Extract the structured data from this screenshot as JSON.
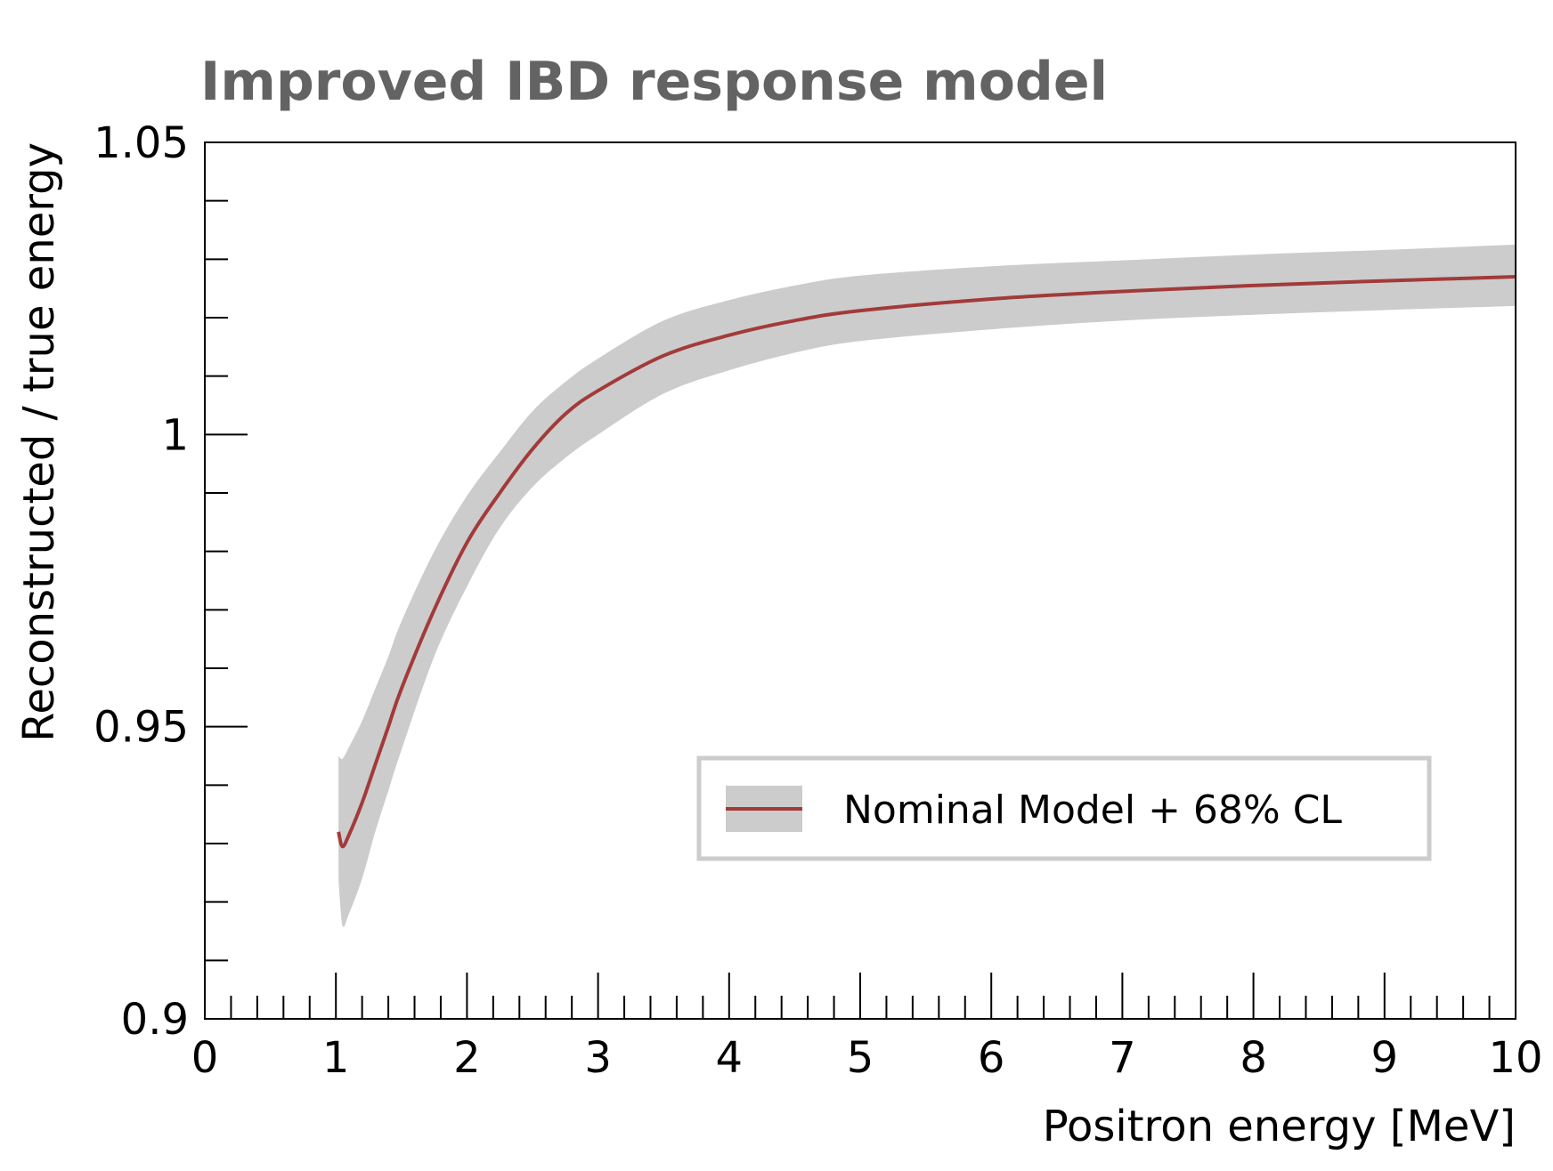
{
  "chart_data": {
    "type": "line",
    "title": "Improved IBD response model",
    "xlabel": "Positron energy [MeV]",
    "ylabel": "Reconstructed / true energy",
    "xlim": [
      0,
      10
    ],
    "ylim": [
      0.9,
      1.05
    ],
    "x_ticks": [
      0,
      1,
      2,
      3,
      4,
      5,
      6,
      7,
      8,
      9,
      10
    ],
    "x_tick_labels": [
      "0",
      "1",
      "2",
      "3",
      "4",
      "5",
      "6",
      "7",
      "8",
      "9",
      "10"
    ],
    "y_ticks": [
      0.9,
      0.95,
      1.0,
      1.05
    ],
    "y_tick_labels": [
      "0.9",
      "0.95",
      "1",
      "1.05"
    ],
    "grid": false,
    "legend": {
      "position": "bottom-right",
      "entries": [
        "Nominal Model + 68% CL"
      ]
    },
    "series": [
      {
        "name": "Nominal Model + 68% CL",
        "color": "#a33a3a",
        "band_color": "#cccccc",
        "x": [
          1.02,
          1.05,
          1.1,
          1.2,
          1.3,
          1.4,
          1.5,
          1.75,
          2.0,
          2.25,
          2.5,
          2.75,
          3.0,
          3.5,
          4.0,
          4.5,
          5.0,
          6.0,
          7.0,
          8.0,
          9.0,
          10.0
        ],
        "y": [
          0.932,
          0.9295,
          0.9315,
          0.937,
          0.9435,
          0.95,
          0.9565,
          0.97,
          0.9815,
          0.99,
          0.9975,
          1.0035,
          1.0075,
          1.0135,
          1.017,
          1.0195,
          1.0212,
          1.0232,
          1.0245,
          1.0255,
          1.0263,
          1.027
        ],
        "y_low": [
          0.924,
          0.916,
          0.918,
          0.924,
          0.932,
          0.939,
          0.946,
          0.962,
          0.974,
          0.984,
          0.991,
          0.996,
          1.0,
          1.007,
          1.011,
          1.014,
          1.016,
          1.018,
          1.0195,
          1.0205,
          1.0213,
          1.022
        ],
        "y_high": [
          0.945,
          0.9445,
          0.9465,
          0.951,
          0.9565,
          0.962,
          0.968,
          0.98,
          0.9895,
          0.997,
          1.004,
          1.009,
          1.013,
          1.0195,
          1.023,
          1.0255,
          1.0272,
          1.0288,
          1.0298,
          1.0308,
          1.0316,
          1.0325
        ]
      }
    ]
  }
}
